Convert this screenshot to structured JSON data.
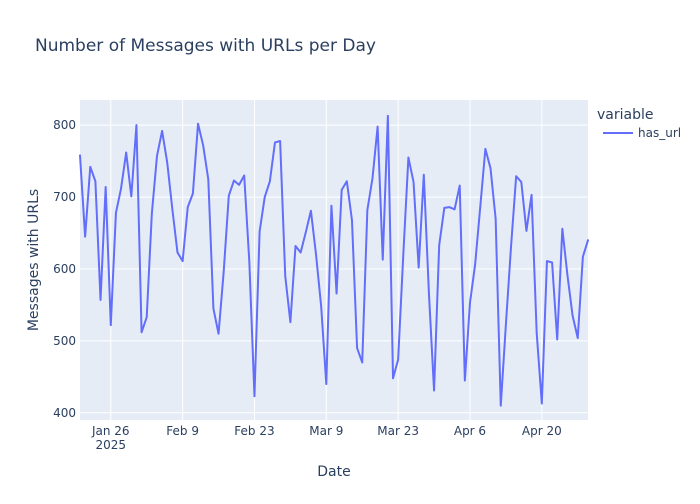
{
  "chart_data": {
    "type": "line",
    "title": "Number of Messages with URLs per Day",
    "xlabel": "Date",
    "ylabel": "Messages with URLs",
    "legend": {
      "title": "variable",
      "entries": [
        "has_url"
      ],
      "placement": "right"
    },
    "grid": true,
    "x_range": [
      "2025-01-20",
      "2025-04-29"
    ],
    "ylim": [
      390,
      835
    ],
    "x_ticks": [
      {
        "date": "2025-01-26",
        "label": "Jan 26",
        "sublabel": "2025"
      },
      {
        "date": "2025-02-09",
        "label": "Feb 9",
        "sublabel": ""
      },
      {
        "date": "2025-02-23",
        "label": "Feb 23",
        "sublabel": ""
      },
      {
        "date": "2025-03-09",
        "label": "Mar 9",
        "sublabel": ""
      },
      {
        "date": "2025-03-23",
        "label": "Mar 23",
        "sublabel": ""
      },
      {
        "date": "2025-04-06",
        "label": "Apr 6",
        "sublabel": ""
      },
      {
        "date": "2025-04-20",
        "label": "Apr 20",
        "sublabel": ""
      }
    ],
    "y_ticks": [
      400,
      500,
      600,
      700,
      800
    ],
    "series": [
      {
        "name": "has_url",
        "color": "#636efa",
        "x": [
          "2025-01-20",
          "2025-01-21",
          "2025-01-22",
          "2025-01-23",
          "2025-01-24",
          "2025-01-25",
          "2025-01-26",
          "2025-01-27",
          "2025-01-28",
          "2025-01-29",
          "2025-01-30",
          "2025-01-31",
          "2025-02-01",
          "2025-02-02",
          "2025-02-03",
          "2025-02-04",
          "2025-02-05",
          "2025-02-06",
          "2025-02-07",
          "2025-02-08",
          "2025-02-09",
          "2025-02-10",
          "2025-02-11",
          "2025-02-12",
          "2025-02-13",
          "2025-02-14",
          "2025-02-15",
          "2025-02-16",
          "2025-02-17",
          "2025-02-18",
          "2025-02-19",
          "2025-02-20",
          "2025-02-21",
          "2025-02-22",
          "2025-02-23",
          "2025-02-24",
          "2025-02-25",
          "2025-02-26",
          "2025-02-27",
          "2025-02-28",
          "2025-03-01",
          "2025-03-02",
          "2025-03-03",
          "2025-03-04",
          "2025-03-05",
          "2025-03-06",
          "2025-03-07",
          "2025-03-08",
          "2025-03-09",
          "2025-03-10",
          "2025-03-11",
          "2025-03-12",
          "2025-03-13",
          "2025-03-14",
          "2025-03-15",
          "2025-03-16",
          "2025-03-17",
          "2025-03-18",
          "2025-03-19",
          "2025-03-20",
          "2025-03-21",
          "2025-03-22",
          "2025-03-23",
          "2025-03-24",
          "2025-03-25",
          "2025-03-26",
          "2025-03-27",
          "2025-03-28",
          "2025-03-29",
          "2025-03-30",
          "2025-03-31",
          "2025-04-01",
          "2025-04-02",
          "2025-04-03",
          "2025-04-04",
          "2025-04-05",
          "2025-04-06",
          "2025-04-07",
          "2025-04-08",
          "2025-04-09",
          "2025-04-10",
          "2025-04-11",
          "2025-04-12",
          "2025-04-13",
          "2025-04-14",
          "2025-04-15",
          "2025-04-16",
          "2025-04-17",
          "2025-04-18",
          "2025-04-19",
          "2025-04-20",
          "2025-04-21",
          "2025-04-22",
          "2025-04-23",
          "2025-04-24",
          "2025-04-25",
          "2025-04-26",
          "2025-04-27",
          "2025-04-28",
          "2025-04-29"
        ],
        "values": [
          758,
          645,
          742,
          722,
          557,
          714,
          522,
          678,
          712,
          762,
          701,
          800,
          512,
          533,
          677,
          757,
          792,
          748,
          683,
          623,
          611,
          686,
          705,
          802,
          772,
          725,
          545,
          510,
          596,
          702,
          723,
          717,
          730,
          610,
          423,
          652,
          700,
          722,
          776,
          778,
          590,
          526,
          632,
          623,
          651,
          681,
          620,
          548,
          440,
          688,
          566,
          710,
          722,
          668,
          490,
          470,
          682,
          726,
          798,
          613,
          813,
          448,
          474,
          619,
          755,
          721,
          602,
          731,
          566,
          431,
          633,
          685,
          686,
          683,
          716,
          445,
          553,
          606,
          686,
          767,
          740,
          670,
          410,
          523,
          631,
          729,
          721,
          653,
          703,
          511,
          413,
          611,
          609,
          502,
          656,
          591,
          535,
          504,
          617,
          640
        ]
      }
    ]
  }
}
